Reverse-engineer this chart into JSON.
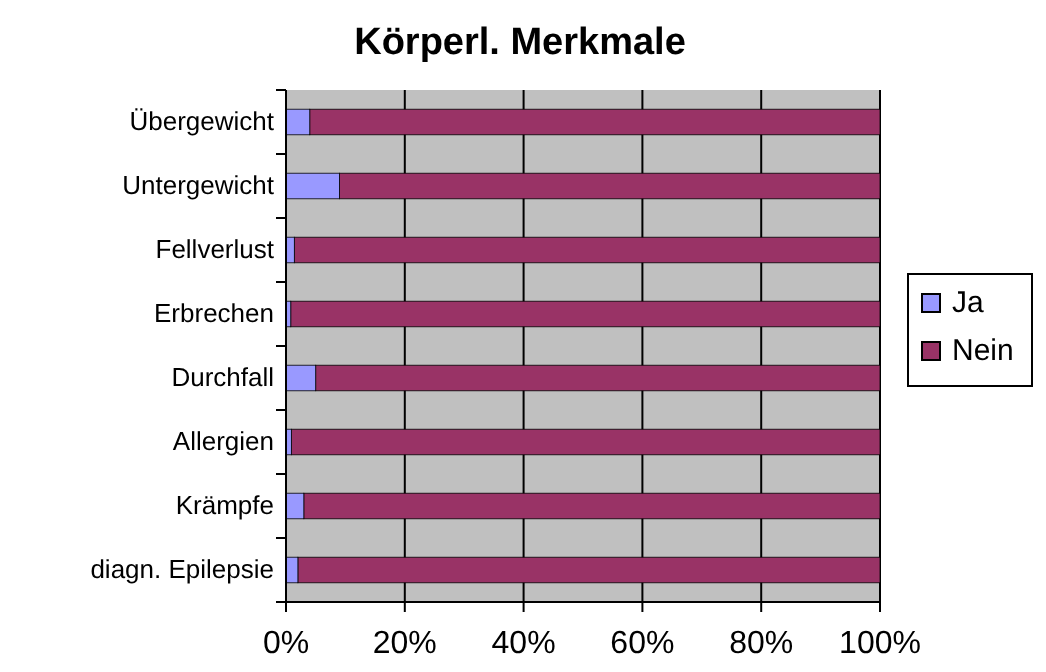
{
  "chart_data": {
    "type": "bar",
    "title": "Körperl. Merkmale",
    "orientation": "horizontal",
    "stacked": true,
    "categories": [
      "Übergewicht",
      "Untergewicht",
      "Fellverlust",
      "Erbrechen",
      "Durchfall",
      "Allergien",
      "Krämpfe",
      "diagn. Epilepsie"
    ],
    "series": [
      {
        "name": "Ja",
        "color": "#9999ff",
        "values": [
          4,
          9,
          1.4,
          0.8,
          5,
          0.9,
          3,
          2
        ]
      },
      {
        "name": "Nein",
        "color": "#993366",
        "values": [
          96,
          91,
          98.6,
          99.2,
          95,
          99.1,
          97,
          98
        ]
      }
    ],
    "xlim": [
      0,
      100
    ],
    "xticks": [
      {
        "value": 0,
        "label": "0%"
      },
      {
        "value": 20,
        "label": "20%"
      },
      {
        "value": 40,
        "label": "40%"
      },
      {
        "value": 60,
        "label": "60%"
      },
      {
        "value": 80,
        "label": "80%"
      },
      {
        "value": 100,
        "label": "100%"
      }
    ],
    "grid": "x",
    "legend": "right"
  }
}
